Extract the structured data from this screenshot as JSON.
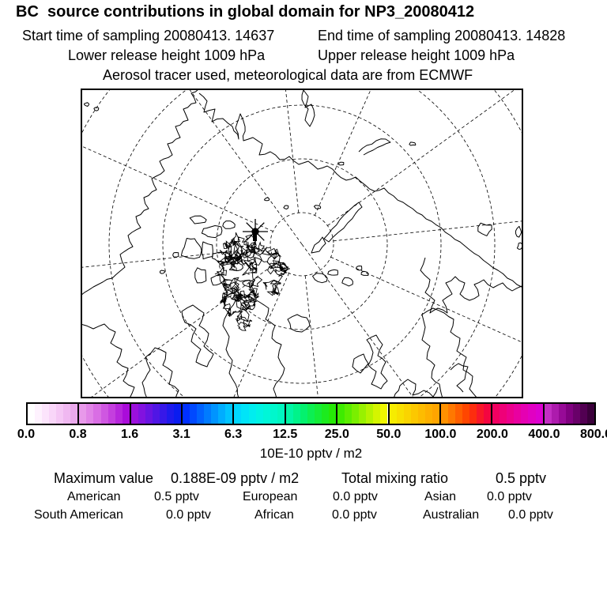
{
  "figure": {
    "title": "BC  source contributions in global domain for NP3_20080412",
    "sampling": {
      "start": "Start time of sampling 20080413. 14637",
      "end": "End time of sampling 20080413. 14828"
    },
    "release": {
      "lower": "Lower release height 1009 hPa",
      "upper": "Upper release height 1009 hPa"
    },
    "tracer_note": "Aerosol tracer used, meteorological data are from ECMWF"
  },
  "colorbar": {
    "unit_label": "10E-10 pptv / m2",
    "tick_labels": [
      "0.0",
      "0.8",
      "1.6",
      "3.1",
      "6.3",
      "12.5",
      "25.0",
      "50.0",
      "100.0",
      "200.0",
      "400.0",
      "800.0"
    ],
    "segment_colors": [
      [
        "#ffffff",
        "#fef2fe",
        "#fce4fc",
        "#f9d6f9",
        "#f5c7f5",
        "#f0b8f1",
        "#eaa9ec"
      ],
      [
        "#e899ea",
        "#e184e7",
        "#d96ee4",
        "#cf57e1",
        "#c43fde",
        "#b726dc",
        "#aa0cda"
      ],
      [
        "#9b10dc",
        "#8212df",
        "#6914e2",
        "#5016e5",
        "#3718e8",
        "#1e1aec",
        "#0a1cf0"
      ],
      [
        "#0030ff",
        "#0049ff",
        "#0062ff",
        "#007bff",
        "#0094ff",
        "#00adff",
        "#00c4ff"
      ],
      [
        "#00d8ff",
        "#00e4f8",
        "#00edef",
        "#00f3e4",
        "#00f6d8",
        "#00f7cc",
        "#00f7c0"
      ],
      [
        "#00f5a6",
        "#00f38a",
        "#04f16e",
        "#0cef52",
        "#14ed38",
        "#1ceb1e",
        "#26e906"
      ],
      [
        "#3eeb00",
        "#5ced00",
        "#7aef00",
        "#98f100",
        "#b6f300",
        "#d4f500",
        "#f0f700"
      ],
      [
        "#f6ec00",
        "#f8e000",
        "#fad400",
        "#fcc800",
        "#fdbc00",
        "#feb000",
        "#ffa500"
      ],
      [
        "#ff9100",
        "#ff7800",
        "#ff5f00",
        "#ff4600",
        "#fd2d0e",
        "#f81728",
        "#f40540"
      ],
      [
        "#f20060",
        "#ef0078",
        "#ec008c",
        "#e900a0",
        "#e500b2",
        "#e100c2",
        "#dc00d0"
      ],
      [
        "#c32ec3",
        "#ad1bad",
        "#970a97",
        "#800080",
        "#690069",
        "#520052",
        "#3b003b"
      ]
    ]
  },
  "stats": {
    "maximum": {
      "label": "Maximum value",
      "value": "0.188E-09 pptv / m2"
    },
    "total": {
      "label": "Total mixing ratio",
      "value": "0.5 pptv"
    },
    "regions": [
      {
        "label": "American",
        "value": "0.5 pptv"
      },
      {
        "label": "European",
        "value": "0.0 pptv"
      },
      {
        "label": "Asian",
        "value": "0.0 pptv"
      },
      {
        "label": "South American",
        "value": "0.0 pptv"
      },
      {
        "label": "African",
        "value": "0.0 pptv"
      },
      {
        "label": "Australian",
        "value": "0.0 pptv"
      }
    ]
  },
  "chart_data": {
    "type": "map",
    "title": "BC  source contributions in global domain for NP3_20080412",
    "colorscale_levels": [
      0.0,
      0.8,
      1.6,
      3.1,
      6.3,
      12.5,
      25.0,
      50.0,
      100.0,
      200.0,
      400.0,
      800.0
    ],
    "colorscale_unit": "10E-10 pptv / m2",
    "maximum_value": "0.188E-09 pptv / m2",
    "total_mixing_ratio": "0.5 pptv",
    "source_contributions": [
      {
        "region": "American",
        "value_pptv": 0.5
      },
      {
        "region": "European",
        "value_pptv": 0.0
      },
      {
        "region": "Asian",
        "value_pptv": 0.0
      },
      {
        "region": "South American",
        "value_pptv": 0.0
      },
      {
        "region": "African",
        "value_pptv": 0.0
      },
      {
        "region": "Australian",
        "value_pptv": 0.0
      }
    ]
  }
}
